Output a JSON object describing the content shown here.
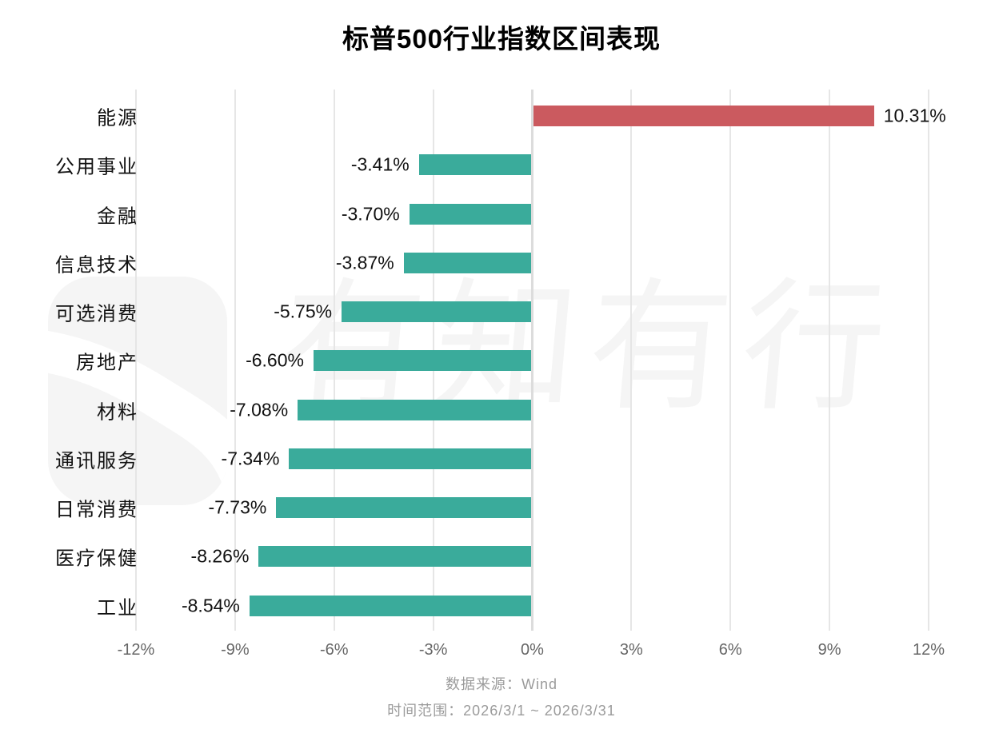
{
  "chart_data": {
    "type": "bar",
    "orientation": "horizontal",
    "title": "标普500行业指数区间表现",
    "categories": [
      "能源",
      "公用事业",
      "金融",
      "信息技术",
      "可选消费",
      "房地产",
      "材料",
      "通讯服务",
      "日常消费",
      "医疗保健",
      "工业"
    ],
    "values": [
      10.31,
      -3.41,
      -3.7,
      -3.87,
      -5.75,
      -6.6,
      -7.08,
      -7.34,
      -7.73,
      -8.26,
      -8.54
    ],
    "value_labels": [
      "10.31%",
      "-3.41%",
      "-3.70%",
      "-3.87%",
      "-5.75%",
      "-6.60%",
      "-7.08%",
      "-7.34%",
      "-7.73%",
      "-8.26%",
      "-8.54%"
    ],
    "x_tick_labels": [
      "-12%",
      "-9%",
      "-6%",
      "-3%",
      "0%",
      "3%",
      "6%",
      "9%",
      "12%"
    ],
    "x_tick_values": [
      -12,
      -9,
      -6,
      -3,
      0,
      3,
      6,
      9,
      12
    ],
    "xlim": [
      -12,
      12
    ],
    "grid": true,
    "legend": "none",
    "positive_color": "#cb5a5f",
    "negative_color": "#3aab9b"
  },
  "footer": {
    "source": "数据来源：Wind",
    "range": "时间范围：2026/3/1 ~ 2026/3/31"
  },
  "watermark": {
    "text": "有知有行",
    "color": "#f5f5f5"
  }
}
